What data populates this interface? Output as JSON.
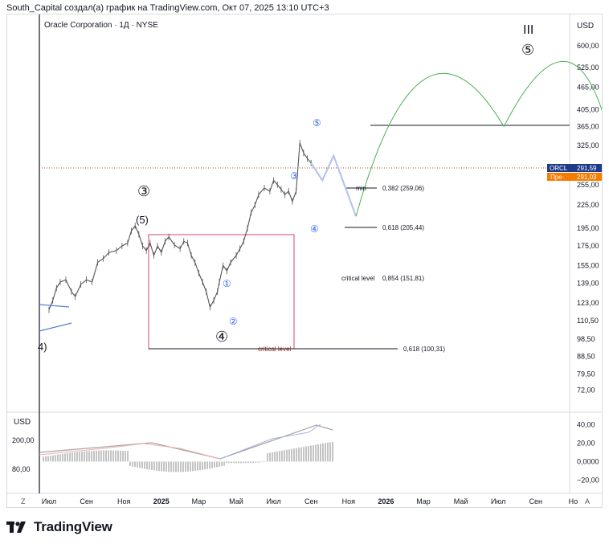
{
  "header": {
    "credit": "South_Capital создал(а) график на TradingView.com, Окт 07, 2025 13:10 UTC+3"
  },
  "chart": {
    "symbol_line": "Oracle Corporation · 1Д · NYSE",
    "currency": "USD",
    "indicator_currency": "USD",
    "price_scale": [
      "600,00",
      "525,00",
      "465,00",
      "405,00",
      "365,00",
      "325,00",
      "255,00",
      "225,00",
      "195,00",
      "175,00",
      "155,00",
      "139,00",
      "123,00",
      "110,50",
      "98,50",
      "88,50",
      "79,50",
      "72,00"
    ],
    "indicator_left_scale": [
      "200,00",
      "80,00"
    ],
    "indicator_right_scale": [
      "40,00",
      "20,00",
      "0,0000",
      "−20,00"
    ],
    "time_axis": [
      "Июл",
      "Сен",
      "Ноя",
      "2025",
      "Мар",
      "Май",
      "Июл",
      "Сен",
      "Ноя",
      "2026",
      "Мар",
      "Май",
      "Июл",
      "Сен",
      "Но"
    ],
    "zoom_label": "Z",
    "auto_label": "A",
    "price_labels": {
      "symbol": "ORCL",
      "last": "291,59",
      "pre_label": "Пре·",
      "pre": "291,03",
      "symbol_color": "#1e3a8a",
      "pre_color": "#f57c00"
    },
    "wave_labels": {
      "big_iii": "III",
      "big_5": "⑤",
      "three_circle": "③",
      "five_paren": "(5)",
      "four_circle": "④",
      "four_paren_cut": "4)",
      "minor_1": "①",
      "minor_2": "②",
      "minor_3": "③",
      "minor_4": "④",
      "minor_5": "⑤"
    },
    "annotations": {
      "min": "min",
      "fib_382": "0,382 (259,06)",
      "fib_618_upper": "0,618 (205,44)",
      "critical_label": "critical level",
      "fib_854": "0,854 (151,81)",
      "critical_lower": "critical level",
      "fib_618_lower": "0,618 (100,31)"
    },
    "colors": {
      "price": "#555555",
      "wave_blue": "#2962ff",
      "projection": "#b7c6e8",
      "arc": "#4caf50",
      "box": "#c2185b",
      "dotted": "#a0522d"
    }
  },
  "chart_data": {
    "type": "line",
    "title": "Oracle Corporation · 1Д · NYSE",
    "xlabel": "",
    "ylabel": "USD",
    "y_scale": "log",
    "ylim": [
      65,
      700
    ],
    "x": [
      "Июл",
      "Сен",
      "Ноя",
      "2025",
      "Мар",
      "Май",
      "Июл",
      "Сен",
      "Ноя",
      "2026",
      "Мар",
      "Май",
      "Июл",
      "Сен",
      "Но"
    ],
    "series": [
      {
        "name": "ORCL",
        "values": [
          [
            0.0,
            118
          ],
          [
            0.1,
            125
          ],
          [
            0.2,
            135
          ],
          [
            0.3,
            140
          ],
          [
            0.45,
            142
          ],
          [
            0.6,
            132
          ],
          [
            0.7,
            128
          ],
          [
            0.85,
            138
          ],
          [
            1.0,
            142
          ],
          [
            1.15,
            140
          ],
          [
            1.3,
            158
          ],
          [
            1.45,
            162
          ],
          [
            1.6,
            168
          ],
          [
            1.8,
            170
          ],
          [
            1.95,
            175
          ],
          [
            2.1,
            178
          ],
          [
            2.2,
            192
          ],
          [
            2.3,
            198
          ],
          [
            2.4,
            188
          ],
          [
            2.5,
            175
          ],
          [
            2.6,
            170
          ],
          [
            2.7,
            178
          ],
          [
            2.8,
            165
          ],
          [
            2.9,
            175
          ],
          [
            3.0,
            168
          ],
          [
            3.1,
            180
          ],
          [
            3.2,
            185
          ],
          [
            3.35,
            176
          ],
          [
            3.5,
            172
          ],
          [
            3.6,
            180
          ],
          [
            3.7,
            178
          ],
          [
            3.8,
            165
          ],
          [
            3.9,
            158
          ],
          [
            4.0,
            148
          ],
          [
            4.1,
            140
          ],
          [
            4.2,
            132
          ],
          [
            4.3,
            120
          ],
          [
            4.4,
            125
          ],
          [
            4.5,
            132
          ],
          [
            4.55,
            140
          ],
          [
            4.65,
            155
          ],
          [
            4.75,
            150
          ],
          [
            4.85,
            158
          ],
          [
            5.0,
            165
          ],
          [
            5.1,
            172
          ],
          [
            5.2,
            180
          ],
          [
            5.3,
            195
          ],
          [
            5.4,
            215
          ],
          [
            5.5,
            225
          ],
          [
            5.6,
            240
          ],
          [
            5.75,
            250
          ],
          [
            5.9,
            245
          ],
          [
            6.0,
            262
          ],
          [
            6.1,
            255
          ],
          [
            6.2,
            248
          ],
          [
            6.3,
            240
          ],
          [
            6.4,
            245
          ],
          [
            6.5,
            230
          ],
          [
            6.6,
            245
          ],
          [
            6.7,
            330
          ],
          [
            6.8,
            310
          ],
          [
            6.9,
            300
          ],
          [
            7.0,
            291.59
          ]
        ]
      }
    ],
    "projections": {
      "abc_correction": [
        [
          7.0,
          291.59
        ],
        [
          7.3,
          262
        ],
        [
          7.6,
          305
        ],
        [
          8.2,
          210
        ]
      ],
      "arc_1": [
        [
          8.2,
          210
        ],
        [
          10.05,
          490
        ],
        [
          12.15,
          365
        ]
      ],
      "arc_2": [
        [
          12.15,
          365
        ],
        [
          13.8,
          545
        ],
        [
          15.0,
          335
        ]
      ]
    },
    "levels": [
      {
        "name": "resistance",
        "value": 380
      },
      {
        "name": "0,382",
        "value": 259.06
      },
      {
        "name": "0,618",
        "value": 205.44
      },
      {
        "name": "0,854",
        "value": 151.81
      },
      {
        "name": "0,618",
        "value": 100.31
      },
      {
        "name": "last",
        "value": 291.59
      }
    ],
    "indicator": {
      "type": "area",
      "right_ylim": [
        -25,
        45
      ]
    }
  }
}
